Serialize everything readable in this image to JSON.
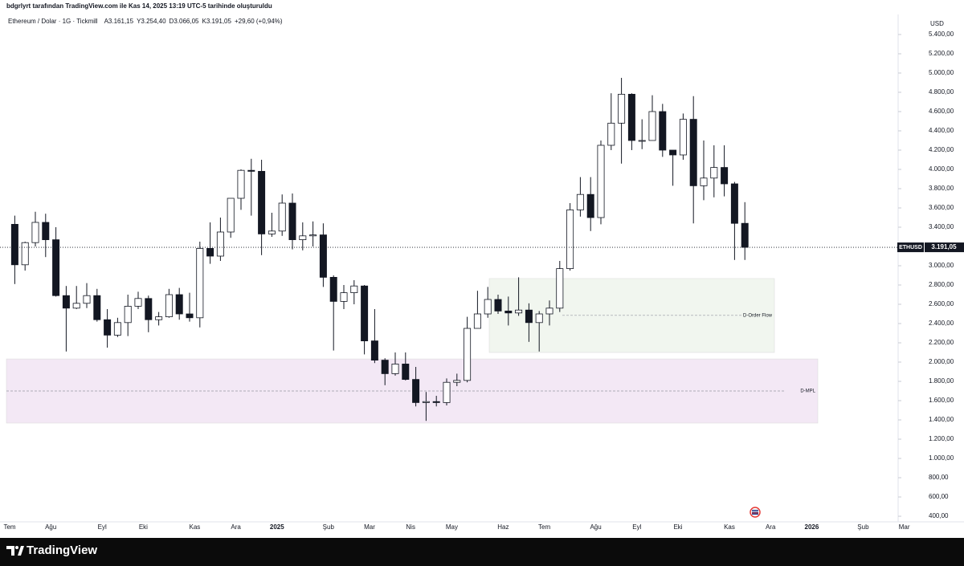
{
  "header": {
    "attribution": "bdgrlyrt tarafından TradingView.com ile Kas 14, 2025 13:19 UTC-5 tarihinde oluşturuldu"
  },
  "chart_data": {
    "type": "candlestick",
    "title": "Ethereum / Dolar · 1G · Tickmill",
    "ohlc_legend": [
      {
        "label": "A",
        "value": "3.161,15"
      },
      {
        "label": "Y",
        "value": "3.254,40"
      },
      {
        "label": "D",
        "value": "3.066,05"
      },
      {
        "label": "K",
        "value": "3.191,05"
      }
    ],
    "change": "+29,60 (+0,94%)",
    "currency": "USD",
    "symbol": "ETHUSD",
    "last_price": {
      "value": 3191.05,
      "label": "3.191,05"
    },
    "up_color": "#ffffff",
    "down_color": "#131722",
    "categories": [
      "Tem",
      null,
      null,
      null,
      "Ağu",
      null,
      null,
      null,
      null,
      "Eyl",
      null,
      null,
      null,
      "Eki",
      null,
      null,
      null,
      null,
      "Kas",
      null,
      null,
      null,
      "Ara",
      null,
      null,
      null,
      "2025",
      null,
      null,
      null,
      null,
      "Şub",
      null,
      null,
      null,
      "Mar",
      null,
      null,
      null,
      "Nis",
      null,
      null,
      null,
      "May",
      null,
      null,
      null,
      null,
      "Haz",
      null,
      null,
      null,
      "Tem",
      null,
      null,
      null,
      null,
      "Ağu",
      null,
      null,
      null,
      "Eyl",
      null,
      null,
      null,
      "Eki",
      null,
      null,
      null,
      null,
      "Kas",
      null,
      null,
      null,
      "Ara",
      null,
      null,
      null,
      "2026",
      null,
      null,
      null,
      null,
      "Şub",
      null,
      null,
      null,
      "Mar"
    ],
    "open": [
      3430,
      3010,
      3240,
      3450,
      3270,
      2690,
      2560,
      2610,
      2690,
      2440,
      2280,
      2410,
      2580,
      2660,
      2440,
      2470,
      2700,
      2500,
      2460,
      3180,
      3100,
      3350,
      3700,
      3990,
      3980,
      3330,
      3360,
      3650,
      3270,
      3310,
      3320,
      2880,
      2630,
      2720,
      2790,
      2220,
      2020,
      1880,
      1980,
      1820,
      1580,
      1590,
      1580,
      1790,
      1810,
      2350,
      2500,
      2650,
      2530,
      2510,
      2540,
      2410,
      2500,
      2560,
      2970,
      3580,
      3740,
      3500,
      4250,
      4480,
      4780,
      4300,
      4300,
      4600,
      4200,
      4150,
      4520,
      3830,
      3910,
      4020,
      3850,
      3440,
      null,
      null,
      null,
      null,
      null,
      null,
      null,
      null,
      null,
      null,
      null,
      null,
      null,
      null,
      null,
      null
    ],
    "high": [
      3520,
      3250,
      3560,
      3540,
      3400,
      2790,
      2790,
      2820,
      2760,
      2550,
      2460,
      2700,
      2730,
      2690,
      2520,
      2760,
      2770,
      2720,
      3250,
      3450,
      3500,
      3700,
      4000,
      4110,
      4100,
      3550,
      3740,
      3750,
      3450,
      3460,
      3440,
      2900,
      2800,
      2850,
      2800,
      2550,
      2040,
      2100,
      2100,
      1950,
      1690,
      1650,
      1830,
      1880,
      2470,
      2740,
      2780,
      2700,
      2680,
      2880,
      2610,
      2530,
      2640,
      3050,
      3650,
      3920,
      3920,
      4300,
      4790,
      4950,
      4790,
      4520,
      4770,
      4680,
      4200,
      4580,
      4760,
      4300,
      4250,
      4250,
      3870,
      3660,
      null,
      null,
      null,
      null,
      null,
      null,
      null,
      null,
      null,
      null,
      null,
      null,
      null,
      null,
      null,
      null
    ],
    "low": [
      2810,
      2950,
      3200,
      3090,
      2680,
      2110,
      2550,
      2560,
      2420,
      2150,
      2260,
      2270,
      2550,
      2310,
      2380,
      2460,
      2440,
      2420,
      2360,
      3020,
      3050,
      3290,
      3580,
      3520,
      3110,
      3300,
      3310,
      3170,
      3160,
      3200,
      2780,
      2120,
      2550,
      2600,
      2080,
      1990,
      1760,
      1860,
      1810,
      1540,
      1390,
      1540,
      1550,
      1750,
      1790,
      2350,
      2460,
      2500,
      2380,
      2480,
      2210,
      2110,
      2380,
      2520,
      2950,
      3510,
      3360,
      3430,
      4200,
      4060,
      4200,
      4210,
      4300,
      4130,
      3830,
      4100,
      3440,
      3680,
      3710,
      3720,
      3060,
      3060,
      null,
      null,
      null,
      null,
      null,
      null,
      null,
      null,
      null,
      null,
      null,
      null,
      null,
      null,
      null,
      null
    ],
    "close": [
      3010,
      3240,
      3450,
      3270,
      2690,
      2560,
      2610,
      2690,
      2440,
      2280,
      2410,
      2580,
      2660,
      2440,
      2470,
      2700,
      2500,
      2460,
      3180,
      3100,
      3350,
      3700,
      3990,
      3980,
      3330,
      3360,
      3650,
      3270,
      3310,
      3320,
      2880,
      2630,
      2720,
      2790,
      2220,
      2020,
      1880,
      1980,
      1820,
      1580,
      1590,
      1580,
      1790,
      1810,
      2350,
      2500,
      2650,
      2530,
      2510,
      2540,
      2410,
      2500,
      2560,
      2970,
      3580,
      3740,
      3500,
      4250,
      4480,
      4780,
      4300,
      4300,
      4600,
      4200,
      4150,
      4520,
      3830,
      3910,
      4020,
      3850,
      3440,
      3191.05,
      null,
      null,
      null,
      null,
      null,
      null,
      null,
      null,
      null,
      null,
      null,
      null,
      null,
      null,
      null,
      null
    ],
    "ylim": [
      342,
      5608
    ],
    "yticks": [
      {
        "value": 400,
        "label": "400,00"
      },
      {
        "value": 600,
        "label": "600,00"
      },
      {
        "value": 800,
        "label": "800,00"
      },
      {
        "value": 1000,
        "label": "1.000,00"
      },
      {
        "value": 1200,
        "label": "1.200,00"
      },
      {
        "value": 1400,
        "label": "1.400,00"
      },
      {
        "value": 1600,
        "label": "1.600,00"
      },
      {
        "value": 1800,
        "label": "1.800,00"
      },
      {
        "value": 2000,
        "label": "2.000,00"
      },
      {
        "value": 2200,
        "label": "2.200,00"
      },
      {
        "value": 2400,
        "label": "2.400,00"
      },
      {
        "value": 2600,
        "label": "2.600,00"
      },
      {
        "value": 2800,
        "label": "2.800,00"
      },
      {
        "value": 3000,
        "label": "3.000,00"
      },
      {
        "value": 3200,
        "label": "3.200,00"
      },
      {
        "value": 3400,
        "label": "3.400,00"
      },
      {
        "value": 3600,
        "label": "3.600,00"
      },
      {
        "value": 3800,
        "label": "3.800,00"
      },
      {
        "value": 4000,
        "label": "4.000,00"
      },
      {
        "value": 4200,
        "label": "4.200,00"
      },
      {
        "value": 4400,
        "label": "4.400,00"
      },
      {
        "value": 4600,
        "label": "4.600,00"
      },
      {
        "value": 4800,
        "label": "4.800,00"
      },
      {
        "value": 5000,
        "label": "5.000,00"
      },
      {
        "value": 5200,
        "label": "5.200,00"
      },
      {
        "value": 5400,
        "label": "5.400,00"
      }
    ],
    "zones": [
      {
        "label": "D-MPL",
        "top": 2033,
        "bottom": 1367,
        "mid": 1700,
        "color": "#f3e8f5"
      },
      {
        "label": "D-Order Flow",
        "top": 2867,
        "bottom": 2100,
        "mid": 2485,
        "color": "#f1f6ef"
      }
    ]
  },
  "footer": {
    "brand": "TradingView"
  }
}
